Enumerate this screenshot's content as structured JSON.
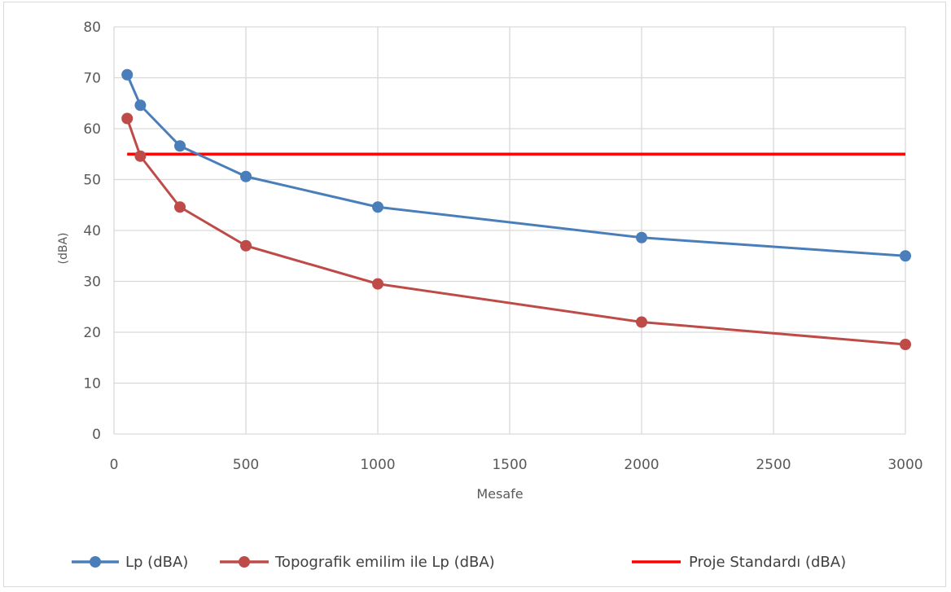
{
  "chart_data": {
    "type": "line",
    "xlabel": "Mesafe",
    "ylabel": "(dBA)",
    "xlim": [
      0,
      3000
    ],
    "ylim": [
      0,
      80
    ],
    "x_ticks": [
      0,
      500,
      1000,
      1500,
      2000,
      2500,
      3000
    ],
    "y_ticks": [
      0,
      10,
      20,
      30,
      40,
      50,
      60,
      70,
      80
    ],
    "grid": true,
    "legend_position": "bottom",
    "series": [
      {
        "name": "Lp (dBA)",
        "color": "#4a7ebb",
        "markers": true,
        "x": [
          50,
          100,
          250,
          500,
          1000,
          2000,
          3000
        ],
        "y": [
          70.6,
          64.6,
          56.6,
          50.6,
          44.6,
          38.6,
          35.0
        ]
      },
      {
        "name": "Topografik emilim ile Lp (dBA)",
        "color": "#be4b48",
        "markers": true,
        "x": [
          50,
          100,
          250,
          500,
          1000,
          2000,
          3000
        ],
        "y": [
          62.0,
          54.6,
          44.6,
          37.0,
          29.5,
          22.0,
          17.6
        ]
      },
      {
        "name": "Proje Standardı (dBA)",
        "color": "#ff0000",
        "markers": false,
        "x": [
          50,
          3000
        ],
        "y": [
          55,
          55
        ]
      }
    ]
  }
}
